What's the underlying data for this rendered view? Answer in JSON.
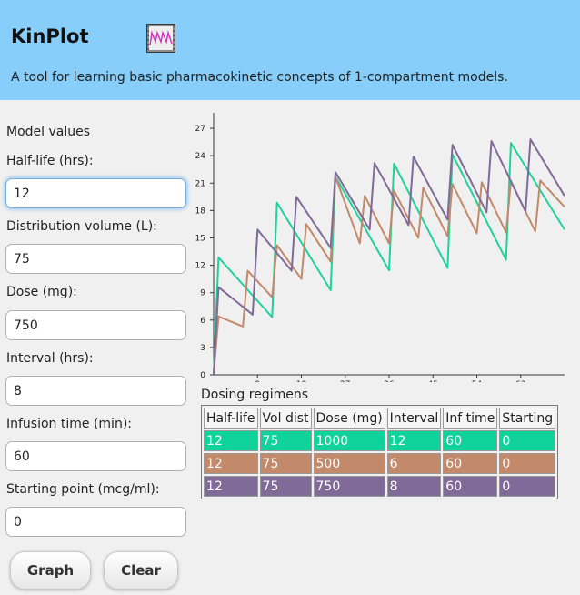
{
  "app": {
    "title": "KinPlot",
    "description": "A tool for learning basic pharmacokinetic concepts of 1-compartment models."
  },
  "form": {
    "section_title": "Model values",
    "fields": [
      {
        "label": "Half-life (hrs):",
        "value": "12"
      },
      {
        "label": "Distribution volume (L):",
        "value": "75"
      },
      {
        "label": "Dose (mg):",
        "value": "750"
      },
      {
        "label": "Interval (hrs):",
        "value": "8"
      },
      {
        "label": "Infusion time (min):",
        "value": "60"
      },
      {
        "label": "Starting point (mcg/ml):",
        "value": "0"
      }
    ],
    "graph_label": "Graph",
    "clear_label": "Clear"
  },
  "regimens": {
    "title": "Dosing regimens",
    "headers": [
      "Half-life",
      "Vol dist",
      "Dose (mg)",
      "Interval",
      "Inf time",
      "Starting"
    ],
    "rows": [
      {
        "color": "#0fd39b",
        "cells": [
          "12",
          "75",
          "1000",
          "12",
          "60",
          "0"
        ]
      },
      {
        "color": "#c2896a",
        "cells": [
          "12",
          "75",
          "500",
          "6",
          "60",
          "0"
        ]
      },
      {
        "color": "#806a98",
        "cells": [
          "12",
          "75",
          "750",
          "8",
          "60",
          "0"
        ]
      }
    ]
  },
  "chart_data": {
    "type": "line",
    "xlim": [
      0,
      72
    ],
    "ylim": [
      0,
      28.5
    ],
    "x_ticks": [
      9,
      18,
      27,
      36,
      45,
      54,
      63
    ],
    "y_ticks": [
      0,
      3,
      6,
      9,
      12,
      15,
      18,
      21,
      24,
      27
    ],
    "series": [
      {
        "color": "#1fd19a",
        "points": [
          [
            0,
            0
          ],
          [
            1,
            12.85
          ],
          [
            12,
            6.33
          ],
          [
            13,
            18.85
          ],
          [
            24,
            9.27
          ],
          [
            25,
            21.71
          ],
          [
            36,
            11.45
          ],
          [
            37,
            23.14
          ],
          [
            48,
            11.7
          ],
          [
            49,
            24.14
          ],
          [
            60,
            12.6
          ],
          [
            61,
            25.4
          ],
          [
            72,
            15.9
          ]
        ]
      },
      {
        "color": "#c2896a",
        "points": [
          [
            0,
            0
          ],
          [
            1,
            6.4
          ],
          [
            6,
            5.3
          ],
          [
            7,
            11.4
          ],
          [
            12,
            8.5
          ],
          [
            13,
            14.2
          ],
          [
            18,
            10.5
          ],
          [
            19,
            16.5
          ],
          [
            24,
            12.4
          ],
          [
            25,
            21.7
          ],
          [
            30,
            14.4
          ],
          [
            31,
            19.6
          ],
          [
            36,
            14.4
          ],
          [
            37,
            20.2
          ],
          [
            42,
            15
          ],
          [
            43,
            20.5
          ],
          [
            48,
            15.2
          ],
          [
            49,
            20.9
          ],
          [
            54,
            15.5
          ],
          [
            55,
            21.1
          ],
          [
            60,
            15.6
          ],
          [
            61,
            21.2
          ],
          [
            66,
            15.7
          ],
          [
            67,
            21.3
          ],
          [
            72,
            18.4
          ]
        ]
      },
      {
        "color": "#806a98",
        "points": [
          [
            0,
            0
          ],
          [
            1,
            9.6
          ],
          [
            8,
            6.6
          ],
          [
            9,
            15.9
          ],
          [
            16,
            11.4
          ],
          [
            17,
            19.5
          ],
          [
            24,
            13.9
          ],
          [
            25,
            22.2
          ],
          [
            32,
            15.9
          ],
          [
            33,
            23.2
          ],
          [
            40,
            16.4
          ],
          [
            41,
            23.9
          ],
          [
            48,
            17
          ],
          [
            49,
            25.2
          ],
          [
            56,
            17.8
          ],
          [
            57,
            25.6
          ],
          [
            64,
            17.9
          ],
          [
            65,
            25.8
          ],
          [
            72,
            19.6
          ]
        ]
      }
    ]
  }
}
